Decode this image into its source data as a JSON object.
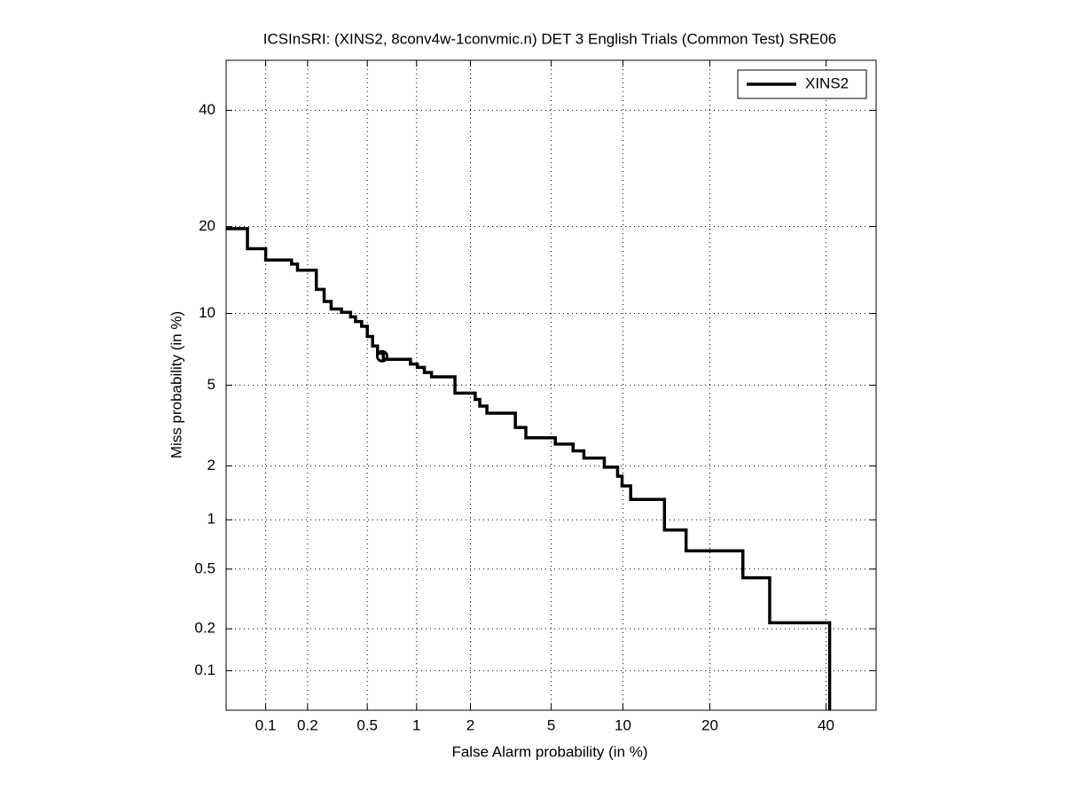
{
  "chart_data": {
    "type": "line",
    "title": "ICSInSRI: (XINS2, 8conv4w-1convmic.n) DET 3 English Trials (Common Test) SRE06",
    "x_label": "False Alarm probability (in %)",
    "y_label": "Miss probability (in %)",
    "scale": "probit",
    "xlim": [
      0.05,
      50
    ],
    "ylim": [
      0.05,
      50
    ],
    "xticks": [
      0.1,
      0.2,
      0.5,
      1,
      2,
      5,
      10,
      20,
      40
    ],
    "yticks": [
      0.1,
      0.2,
      0.5,
      1,
      2,
      5,
      10,
      20,
      40
    ],
    "grid": true,
    "legend": "upper right",
    "series": [
      {
        "name": "XINS2",
        "color": "#000000",
        "x": [
          0.05,
          0.073,
          0.073,
          0.1,
          0.1,
          0.154,
          0.154,
          0.17,
          0.17,
          0.23,
          0.23,
          0.26,
          0.26,
          0.29,
          0.29,
          0.34,
          0.34,
          0.39,
          0.39,
          0.42,
          0.42,
          0.46,
          0.46,
          0.5,
          0.5,
          0.54,
          0.54,
          0.58,
          0.58,
          0.63,
          0.63,
          0.92,
          0.92,
          1.01,
          1.01,
          1.11,
          1.11,
          1.22,
          1.22,
          1.65,
          1.65,
          2.12,
          2.12,
          2.24,
          2.24,
          2.44,
          2.44,
          3.39,
          3.39,
          3.81,
          3.81,
          5.22,
          5.22,
          6.25,
          6.25,
          6.95,
          6.95,
          8.44,
          8.44,
          9.53,
          9.53,
          9.92,
          9.92,
          10.7,
          10.7,
          14.2,
          14.2,
          16.8,
          16.8,
          25,
          25,
          29.5,
          29.5,
          40.7,
          40.7
        ],
        "values": [
          19.7,
          19.7,
          17.0,
          17.0,
          15.6,
          15.6,
          15.1,
          15.1,
          14.4,
          14.4,
          12.3,
          12.3,
          11.1,
          11.1,
          10.4,
          10.4,
          10.1,
          10.1,
          9.7,
          9.7,
          9.3,
          9.3,
          8.9,
          8.9,
          8.1,
          8.1,
          7.4,
          7.4,
          6.9,
          6.9,
          6.5,
          6.5,
          6.2,
          6.2,
          6.0,
          6.0,
          5.7,
          5.7,
          5.45,
          5.45,
          4.6,
          4.6,
          4.3,
          4.3,
          4.0,
          4.0,
          3.7,
          3.7,
          3.15,
          3.15,
          2.8,
          2.8,
          2.6,
          2.6,
          2.4,
          2.4,
          2.2,
          2.2,
          1.97,
          1.97,
          1.76,
          1.76,
          1.56,
          1.56,
          1.31,
          1.31,
          0.87,
          0.87,
          0.65,
          0.65,
          0.44,
          0.44,
          0.22,
          0.22,
          0.05
        ],
        "marker_point": {
          "x": 0.62,
          "y": 6.7
        }
      }
    ]
  }
}
